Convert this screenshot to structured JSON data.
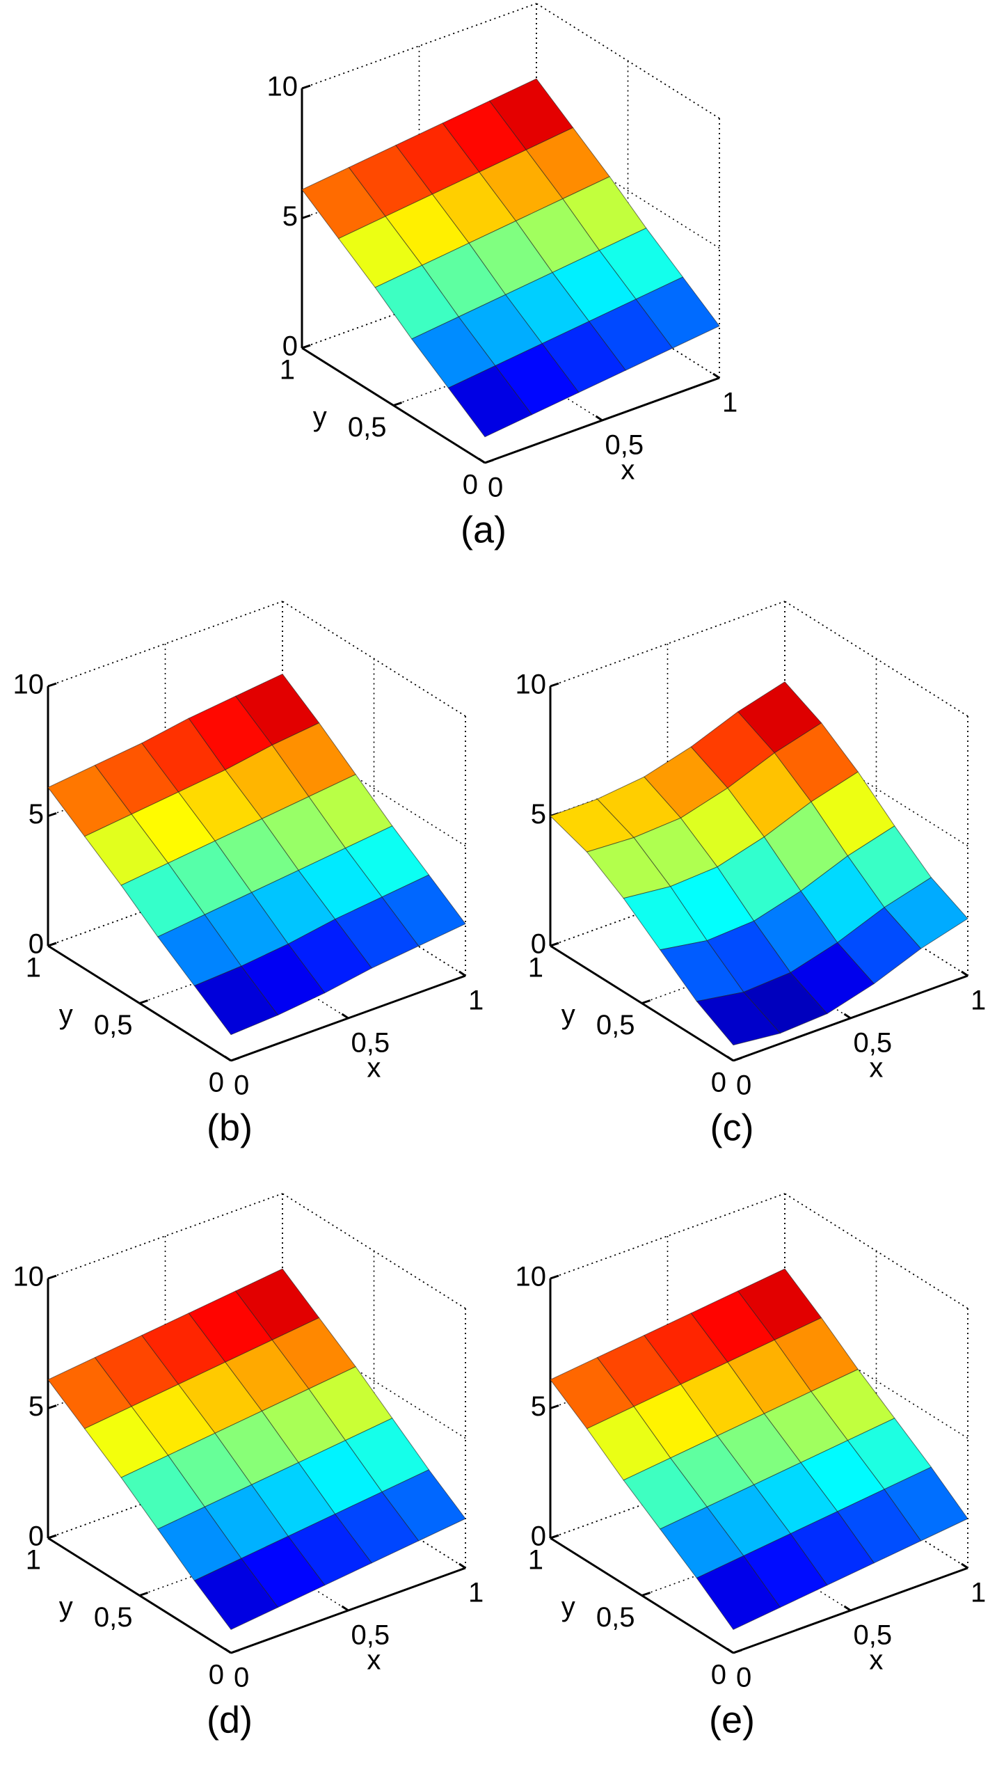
{
  "chart_data": [
    {
      "type": "surface",
      "label": "(a)",
      "xlabel": "x",
      "ylabel": "y",
      "x": [
        0,
        0.2,
        0.4,
        0.6,
        0.8,
        1
      ],
      "y": [
        0,
        0.2,
        0.4,
        0.6,
        0.8,
        1
      ],
      "z": [
        [
          1.0,
          1.2,
          1.4,
          1.6,
          1.8,
          2.0
        ],
        [
          2.0,
          2.2,
          2.4,
          2.6,
          2.8,
          3.0
        ],
        [
          3.0,
          3.2,
          3.4,
          3.6,
          3.8,
          4.0
        ],
        [
          4.1,
          4.3,
          4.5,
          4.7,
          4.9,
          5.1
        ],
        [
          5.1,
          5.3,
          5.5,
          5.7,
          5.9,
          6.1
        ],
        [
          6.1,
          6.3,
          6.5,
          6.7,
          6.9,
          7.1
        ]
      ],
      "xlim": [
        0,
        1
      ],
      "ylim": [
        0,
        1
      ],
      "zlim": [
        0,
        10
      ],
      "xticks": [
        0,
        {
          "value": 0.5,
          "label": "0,5"
        },
        1
      ],
      "yticks": [
        0,
        {
          "value": 0.5,
          "label": "0,5"
        },
        1
      ],
      "zticks": [
        0,
        5,
        10
      ],
      "grid": true,
      "colormap": "jet"
    },
    {
      "type": "surface",
      "label": "(b)",
      "xlabel": "x",
      "ylabel": "y",
      "x": [
        0,
        0.2,
        0.4,
        0.6,
        0.8,
        1
      ],
      "y": [
        0,
        0.2,
        0.4,
        0.6,
        0.8,
        1
      ],
      "z": [
        [
          1.0,
          1.1,
          1.3,
          1.6,
          1.8,
          2.0
        ],
        [
          2.0,
          2.1,
          2.3,
          2.6,
          2.8,
          3.0
        ],
        [
          3.0,
          3.2,
          3.4,
          3.6,
          3.8,
          4.0
        ],
        [
          4.1,
          4.3,
          4.5,
          4.7,
          4.9,
          5.1
        ],
        [
          5.1,
          5.3,
          5.5,
          5.7,
          6.0,
          6.2
        ],
        [
          6.1,
          6.3,
          6.5,
          6.8,
          7.0,
          7.2
        ]
      ],
      "xlim": [
        0,
        1
      ],
      "ylim": [
        0,
        1
      ],
      "zlim": [
        0,
        10
      ],
      "xticks": [
        0,
        {
          "value": 0.5,
          "label": "0,5"
        },
        1
      ],
      "yticks": [
        0,
        {
          "value": 0.5,
          "label": "0,5"
        },
        1
      ],
      "zticks": [
        0,
        5,
        10
      ],
      "grid": true,
      "colormap": "jet"
    },
    {
      "type": "surface",
      "label": "(c)",
      "xlabel": "x",
      "ylabel": "y",
      "x": [
        0,
        0.2,
        0.4,
        0.6,
        0.8,
        1
      ],
      "y": [
        0,
        0.2,
        0.4,
        0.6,
        0.8,
        1
      ],
      "z": [
        [
          0.6,
          0.4,
          0.5,
          1.0,
          1.7,
          2.2
        ],
        [
          1.4,
          1.1,
          1.2,
          1.7,
          2.4,
          2.9
        ],
        [
          2.5,
          2.2,
          2.3,
          2.8,
          3.5,
          4.0
        ],
        [
          3.6,
          3.4,
          3.5,
          4.0,
          4.7,
          5.2
        ],
        [
          4.5,
          4.4,
          4.5,
          5.0,
          5.7,
          6.2
        ],
        [
          5.0,
          5.0,
          5.2,
          5.7,
          6.4,
          6.9
        ]
      ],
      "xlim": [
        0,
        1
      ],
      "ylim": [
        0,
        1
      ],
      "zlim": [
        0,
        10
      ],
      "xticks": [
        0,
        {
          "value": 0.5,
          "label": "0,5"
        },
        1
      ],
      "yticks": [
        0,
        {
          "value": 0.5,
          "label": "0,5"
        },
        1
      ],
      "zticks": [
        0,
        5,
        10
      ],
      "grid": true,
      "colormap": "jet"
    },
    {
      "type": "surface",
      "label": "(d)",
      "xlabel": "x",
      "ylabel": "y",
      "x": [
        0,
        0.2,
        0.4,
        0.6,
        0.8,
        1
      ],
      "y": [
        0,
        0.2,
        0.4,
        0.6,
        0.8,
        1
      ],
      "z": [
        [
          0.9,
          1.1,
          1.3,
          1.5,
          1.7,
          1.9
        ],
        [
          1.9,
          2.1,
          2.3,
          2.5,
          2.7,
          2.9
        ],
        [
          3.0,
          3.2,
          3.4,
          3.6,
          3.8,
          4.0
        ],
        [
          4.1,
          4.3,
          4.5,
          4.7,
          4.9,
          5.1
        ],
        [
          5.1,
          5.3,
          5.5,
          5.7,
          5.9,
          6.1
        ],
        [
          6.1,
          6.3,
          6.5,
          6.7,
          6.9,
          7.1
        ]
      ],
      "xlim": [
        0,
        1
      ],
      "ylim": [
        0,
        1
      ],
      "zlim": [
        0,
        10
      ],
      "xticks": [
        0,
        {
          "value": 0.5,
          "label": "0,5"
        },
        1
      ],
      "yticks": [
        0,
        {
          "value": 0.5,
          "label": "0,5"
        },
        1
      ],
      "zticks": [
        0,
        5,
        10
      ],
      "grid": true,
      "colormap": "jet"
    },
    {
      "type": "surface",
      "label": "(e)",
      "xlabel": "x",
      "ylabel": "y",
      "x": [
        0,
        0.2,
        0.4,
        0.6,
        0.8,
        1
      ],
      "y": [
        0,
        0.2,
        0.4,
        0.6,
        0.8,
        1
      ],
      "z": [
        [
          0.9,
          1.1,
          1.3,
          1.5,
          1.7,
          1.9
        ],
        [
          2.0,
          2.2,
          2.4,
          2.6,
          2.8,
          3.0
        ],
        [
          3.0,
          3.2,
          3.4,
          3.6,
          3.8,
          4.0
        ],
        [
          4.0,
          4.2,
          4.4,
          4.6,
          4.8,
          5.0
        ],
        [
          5.1,
          5.3,
          5.5,
          5.7,
          5.9,
          6.1
        ],
        [
          6.1,
          6.3,
          6.5,
          6.7,
          6.9,
          7.1
        ]
      ],
      "xlim": [
        0,
        1
      ],
      "ylim": [
        0,
        1
      ],
      "zlim": [
        0,
        10
      ],
      "xticks": [
        0,
        {
          "value": 0.5,
          "label": "0,5"
        },
        1
      ],
      "yticks": [
        0,
        {
          "value": 0.5,
          "label": "0,5"
        },
        1
      ],
      "zticks": [
        0,
        5,
        10
      ],
      "grid": true,
      "colormap": "jet"
    }
  ]
}
